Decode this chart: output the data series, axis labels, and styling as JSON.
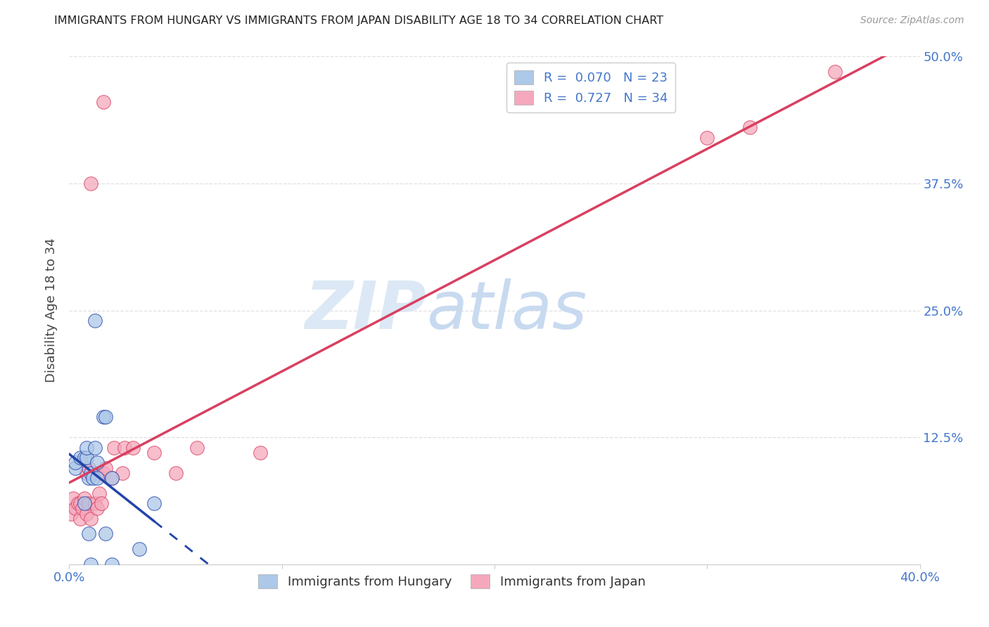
{
  "title": "IMMIGRANTS FROM HUNGARY VS IMMIGRANTS FROM JAPAN DISABILITY AGE 18 TO 34 CORRELATION CHART",
  "source": "Source: ZipAtlas.com",
  "ylabel": "Disability Age 18 to 34",
  "xlim": [
    0.0,
    0.4
  ],
  "ylim": [
    0.0,
    0.5
  ],
  "xticks": [
    0.0,
    0.1,
    0.2,
    0.3,
    0.4
  ],
  "xtick_labels": [
    "0.0%",
    "",
    "",
    "",
    "40.0%"
  ],
  "ytick_labels_right": [
    "12.5%",
    "25.0%",
    "37.5%",
    "50.0%"
  ],
  "yticks_right": [
    0.125,
    0.25,
    0.375,
    0.5
  ],
  "hungary_color": "#adc8e8",
  "japan_color": "#f5a8bc",
  "hungary_line_color": "#2244aa",
  "japan_line_color": "#d94060",
  "hungary_R": 0.07,
  "hungary_N": 23,
  "japan_R": 0.727,
  "japan_N": 34,
  "hungary_scatter_x": [
    0.003,
    0.003,
    0.005,
    0.007,
    0.007,
    0.008,
    0.008,
    0.009,
    0.009,
    0.01,
    0.01,
    0.011,
    0.012,
    0.012,
    0.013,
    0.013,
    0.016,
    0.017,
    0.017,
    0.02,
    0.02,
    0.033,
    0.04
  ],
  "hungary_scatter_y": [
    0.095,
    0.1,
    0.105,
    0.06,
    0.105,
    0.105,
    0.115,
    0.03,
    0.085,
    0.0,
    0.09,
    0.085,
    0.115,
    0.24,
    0.085,
    0.1,
    0.145,
    0.03,
    0.145,
    0.085,
    0.0,
    0.015,
    0.06
  ],
  "japan_scatter_x": [
    0.001,
    0.002,
    0.003,
    0.004,
    0.005,
    0.005,
    0.006,
    0.007,
    0.008,
    0.008,
    0.009,
    0.009,
    0.01,
    0.01,
    0.012,
    0.013,
    0.013,
    0.014,
    0.015,
    0.016,
    0.016,
    0.017,
    0.02,
    0.021,
    0.025,
    0.026,
    0.03,
    0.04,
    0.05,
    0.06,
    0.09,
    0.3,
    0.32,
    0.36
  ],
  "japan_scatter_y": [
    0.05,
    0.065,
    0.055,
    0.06,
    0.045,
    0.06,
    0.055,
    0.065,
    0.05,
    0.09,
    0.06,
    0.095,
    0.045,
    0.375,
    0.06,
    0.055,
    0.09,
    0.07,
    0.06,
    0.09,
    0.455,
    0.095,
    0.085,
    0.115,
    0.09,
    0.115,
    0.115,
    0.11,
    0.09,
    0.115,
    0.11,
    0.42,
    0.43,
    0.485
  ],
  "watermark_zip": "ZIP",
  "watermark_atlas": "atlas",
  "background_color": "#ffffff",
  "grid_color": "#e0e0e0",
  "hungary_line_x_solid_end": 0.04,
  "japan_line_x_start": 0.0,
  "japan_line_x_end": 0.4
}
